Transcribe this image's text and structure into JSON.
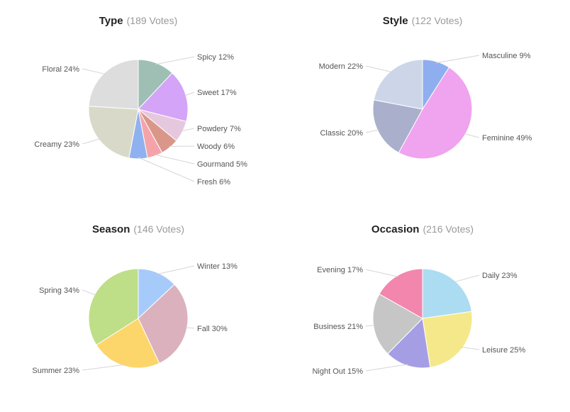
{
  "chart_data": [
    {
      "type": "pie",
      "title": "Type",
      "subtitle": "(189 Votes)",
      "slices": [
        {
          "label": "Spicy 12%",
          "value": 12,
          "color": "#9fbfb5"
        },
        {
          "label": "Sweet 17%",
          "value": 17,
          "color": "#d3a4f7"
        },
        {
          "label": "Powdery 7%",
          "value": 7,
          "color": "#e6c8de"
        },
        {
          "label": "Woody 6%",
          "value": 6,
          "color": "#d9978a"
        },
        {
          "label": "Gourmand 5%",
          "value": 5,
          "color": "#f5a3aa"
        },
        {
          "label": "Fresh 6%",
          "value": 6,
          "color": "#8fb1f0"
        },
        {
          "label": "Creamy 23%",
          "value": 23,
          "color": "#d9d9c9"
        },
        {
          "label": "Floral 24%",
          "value": 24,
          "color": "#dddddd"
        }
      ]
    },
    {
      "type": "pie",
      "title": "Style",
      "subtitle": "(122 Votes)",
      "slices": [
        {
          "label": "Masculine 9%",
          "value": 9,
          "color": "#8eaef0"
        },
        {
          "label": "Feminine 49%",
          "value": 49,
          "color": "#f0a3ef"
        },
        {
          "label": "Classic 20%",
          "value": 20,
          "color": "#aab0cb"
        },
        {
          "label": "Modern 22%",
          "value": 22,
          "color": "#cdd6e8"
        }
      ]
    },
    {
      "type": "pie",
      "title": "Season",
      "subtitle": "(146 Votes)",
      "slices": [
        {
          "label": "Winter 13%",
          "value": 13,
          "color": "#a6cbfa"
        },
        {
          "label": "Fall 30%",
          "value": 30,
          "color": "#dbb1bd"
        },
        {
          "label": "Summer 23%",
          "value": 23,
          "color": "#fcd66a"
        },
        {
          "label": "Spring 34%",
          "value": 34,
          "color": "#bfde88"
        }
      ]
    },
    {
      "type": "pie",
      "title": "Occasion",
      "subtitle": "(216 Votes)",
      "slices": [
        {
          "label": "Daily 23%",
          "value": 23,
          "color": "#abdcf1"
        },
        {
          "label": "Leisure 25%",
          "value": 25,
          "color": "#f5e88a"
        },
        {
          "label": "Night Out 15%",
          "value": 15,
          "color": "#a59ee5"
        },
        {
          "label": "Business 21%",
          "value": 21,
          "color": "#c6c6c6"
        },
        {
          "label": "Evening 17%",
          "value": 17,
          "color": "#f286ad"
        }
      ]
    }
  ]
}
